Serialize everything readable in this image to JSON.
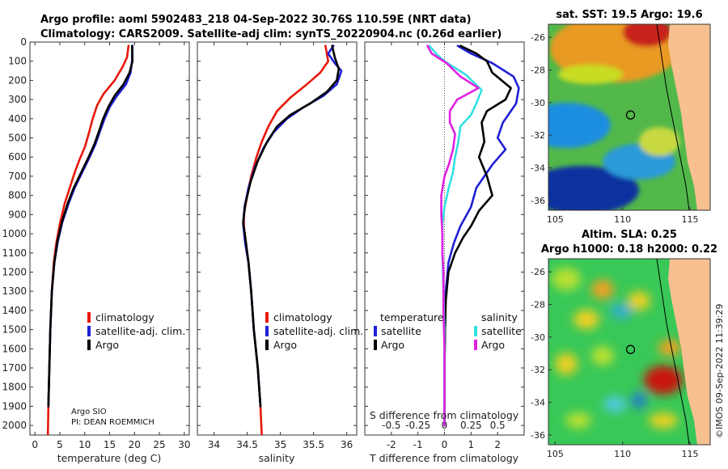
{
  "title_line1": "Argo profile: aoml 5902483_218 04-Sep-2022 30.76S 110.59E (NRT data)",
  "title_line2": "Climatology: CARS2009. Satellite-adj clim: synTS_20220904.nc (0.26d earlier)",
  "credit": "©IMOS 09-Sep-2022 11:39:29",
  "pi_line1": "Argo SIO",
  "pi_line2": "PI: DEAN ROEMMICH",
  "colors": {
    "climatology": "#e8180c",
    "satellite": "#1f1fd6",
    "argo": "#000000",
    "sat_salinity": "#33e0e0",
    "argo_salinity": "#e020e0"
  },
  "chart_data": [
    {
      "type": "line",
      "id": "temperature",
      "xlabel": "temperature (deg C)",
      "ylabel": "",
      "xlim": [
        -1,
        31
      ],
      "ylim": [
        2050,
        0
      ],
      "xticks": [
        0,
        5,
        10,
        15,
        20,
        25,
        30
      ],
      "yticks": [
        0,
        100,
        200,
        300,
        400,
        500,
        600,
        700,
        800,
        900,
        1000,
        1100,
        1200,
        1300,
        1400,
        1500,
        1600,
        1700,
        1800,
        1900,
        2000
      ],
      "legend": [
        "climatology",
        "satellite-adj. clim.",
        "Argo"
      ],
      "series": [
        {
          "name": "climatology",
          "color": "#e8180c",
          "points": [
            [
              18.8,
              20
            ],
            [
              18.5,
              80
            ],
            [
              17.6,
              130
            ],
            [
              16.0,
              200
            ],
            [
              13.8,
              270
            ],
            [
              12.5,
              330
            ],
            [
              11.6,
              400
            ],
            [
              10.8,
              480
            ],
            [
              10.0,
              550
            ],
            [
              9.0,
              610
            ],
            [
              8.0,
              680
            ],
            [
              7.0,
              760
            ],
            [
              6.0,
              840
            ],
            [
              5.0,
              950
            ],
            [
              4.3,
              1050
            ],
            [
              3.8,
              1150
            ],
            [
              3.4,
              1300
            ],
            [
              3.1,
              1500
            ],
            [
              2.9,
              1700
            ],
            [
              2.7,
              1900
            ],
            [
              2.6,
              2050
            ]
          ]
        },
        {
          "name": "satellite-adj. clim.",
          "color": "#1f1fd6",
          "points": [
            [
              19.6,
              20
            ],
            [
              19.5,
              100
            ],
            [
              19.2,
              160
            ],
            [
              18.3,
              220
            ],
            [
              16.5,
              280
            ],
            [
              15.0,
              340
            ],
            [
              14.0,
              400
            ],
            [
              13.0,
              470
            ],
            [
              12.2,
              530
            ],
            [
              11.0,
              600
            ],
            [
              9.5,
              680
            ],
            [
              8.0,
              760
            ],
            [
              6.8,
              840
            ],
            [
              5.5,
              940
            ],
            [
              4.6,
              1040
            ],
            [
              3.9,
              1150
            ],
            [
              3.4,
              1300
            ],
            [
              3.1,
              1500
            ],
            [
              2.9,
              1700
            ],
            [
              2.7,
              1900
            ]
          ]
        },
        {
          "name": "Argo",
          "color": "#000000",
          "points": [
            [
              19.5,
              20
            ],
            [
              19.6,
              100
            ],
            [
              19.0,
              160
            ],
            [
              17.8,
              220
            ],
            [
              16.0,
              280
            ],
            [
              14.7,
              340
            ],
            [
              13.7,
              400
            ],
            [
              12.8,
              470
            ],
            [
              12.0,
              530
            ],
            [
              10.8,
              600
            ],
            [
              9.3,
              680
            ],
            [
              7.8,
              760
            ],
            [
              6.6,
              840
            ],
            [
              5.4,
              940
            ],
            [
              4.5,
              1040
            ],
            [
              3.9,
              1150
            ],
            [
              3.4,
              1300
            ],
            [
              3.1,
              1500
            ],
            [
              2.9,
              1700
            ],
            [
              2.7,
              1900
            ]
          ]
        }
      ]
    },
    {
      "type": "line",
      "id": "salinity",
      "xlabel": "salinity",
      "xlim": [
        33.75,
        36.15
      ],
      "ylim": [
        2050,
        0
      ],
      "xticks": [
        34,
        34.5,
        35,
        35.5,
        36
      ],
      "legend": [
        "climatology",
        "satellite-adj. clim.",
        "Argo"
      ],
      "series": [
        {
          "name": "climatology",
          "color": "#e8180c",
          "points": [
            [
              35.68,
              20
            ],
            [
              35.72,
              100
            ],
            [
              35.6,
              160
            ],
            [
              35.4,
              220
            ],
            [
              35.15,
              290
            ],
            [
              34.95,
              360
            ],
            [
              34.82,
              440
            ],
            [
              34.72,
              520
            ],
            [
              34.64,
              600
            ],
            [
              34.56,
              700
            ],
            [
              34.5,
              800
            ],
            [
              34.45,
              900
            ],
            [
              34.45,
              960
            ],
            [
              34.48,
              1050
            ],
            [
              34.52,
              1150
            ],
            [
              34.56,
              1300
            ],
            [
              34.6,
              1500
            ],
            [
              34.66,
              1700
            ],
            [
              34.7,
              1900
            ],
            [
              34.72,
              2050
            ]
          ]
        },
        {
          "name": "satellite-adj. clim.",
          "color": "#1f1fd6",
          "points": [
            [
              35.8,
              20
            ],
            [
              35.72,
              60
            ],
            [
              35.82,
              110
            ],
            [
              35.92,
              150
            ],
            [
              35.85,
              220
            ],
            [
              35.65,
              280
            ],
            [
              35.35,
              340
            ],
            [
              35.1,
              400
            ],
            [
              34.9,
              470
            ],
            [
              34.75,
              550
            ],
            [
              34.62,
              650
            ],
            [
              34.52,
              760
            ],
            [
              34.46,
              860
            ],
            [
              34.44,
              950
            ],
            [
              34.47,
              1050
            ],
            [
              34.52,
              1150
            ],
            [
              34.56,
              1300
            ],
            [
              34.6,
              1500
            ],
            [
              34.66,
              1700
            ],
            [
              34.7,
              1900
            ]
          ]
        },
        {
          "name": "Argo",
          "color": "#000000",
          "points": [
            [
              35.78,
              20
            ],
            [
              35.82,
              80
            ],
            [
              35.88,
              140
            ],
            [
              35.85,
              200
            ],
            [
              35.7,
              260
            ],
            [
              35.45,
              320
            ],
            [
              35.15,
              380
            ],
            [
              34.95,
              440
            ],
            [
              34.8,
              520
            ],
            [
              34.66,
              620
            ],
            [
              34.55,
              730
            ],
            [
              34.47,
              850
            ],
            [
              34.44,
              940
            ],
            [
              34.48,
              1040
            ],
            [
              34.52,
              1150
            ],
            [
              34.56,
              1300
            ],
            [
              34.6,
              1500
            ],
            [
              34.66,
              1700
            ],
            [
              34.7,
              1900
            ]
          ]
        }
      ]
    },
    {
      "type": "line",
      "id": "difference",
      "xlabel": "T difference from climatology",
      "top_axis_label": "S difference from climatology",
      "xlim": [
        -3.0,
        3.0
      ],
      "ylim": [
        2050,
        0
      ],
      "xticks": [
        -2,
        -1,
        0,
        1,
        2
      ],
      "xtick_labels": [
        "-2",
        "-1",
        "0",
        "1",
        "2"
      ],
      "sticks": [
        -0.5,
        -0.25,
        0,
        0.25,
        0.5
      ],
      "stick_labels": [
        "-0.5",
        "-0.25",
        "0",
        "0.25",
        "0.5"
      ],
      "stick_scale": 4,
      "legend_titles": [
        "temperature",
        "salinity"
      ],
      "legend_t": [
        "satellite",
        "Argo"
      ],
      "legend_s": [
        "satellite",
        "Argo"
      ],
      "series": [
        {
          "name": "T satellite",
          "color": "#1f1fd6",
          "points": [
            [
              0.5,
              20
            ],
            [
              1.0,
              60
            ],
            [
              1.8,
              110
            ],
            [
              2.6,
              180
            ],
            [
              2.8,
              240
            ],
            [
              2.7,
              320
            ],
            [
              2.2,
              420
            ],
            [
              2.0,
              500
            ],
            [
              2.3,
              560
            ],
            [
              1.8,
              640
            ],
            [
              1.2,
              760
            ],
            [
              1.0,
              860
            ],
            [
              0.6,
              960
            ],
            [
              0.35,
              1050
            ],
            [
              0.15,
              1150
            ],
            [
              0.05,
              1300
            ],
            [
              0.02,
              1500
            ],
            [
              0.0,
              1700
            ],
            [
              0.0,
              1900
            ],
            [
              0.0,
              2000
            ]
          ]
        },
        {
          "name": "T Argo",
          "color": "#000000",
          "points": [
            [
              0.6,
              20
            ],
            [
              1.2,
              60
            ],
            [
              1.6,
              100
            ],
            [
              1.8,
              160
            ],
            [
              2.5,
              240
            ],
            [
              2.3,
              300
            ],
            [
              1.6,
              360
            ],
            [
              1.4,
              420
            ],
            [
              1.5,
              520
            ],
            [
              1.3,
              600
            ],
            [
              1.6,
              700
            ],
            [
              1.8,
              800
            ],
            [
              1.3,
              880
            ],
            [
              1.0,
              960
            ],
            [
              0.7,
              1020
            ],
            [
              0.4,
              1100
            ],
            [
              0.15,
              1200
            ],
            [
              0.05,
              1350
            ],
            [
              0.02,
              1500
            ],
            [
              0.0,
              1700
            ],
            [
              0.0,
              1900
            ],
            [
              0.0,
              2000
            ]
          ]
        },
        {
          "name": "S satellite",
          "color": "#33e0e0",
          "points": [
            [
              -0.14,
              20
            ],
            [
              -0.08,
              60
            ],
            [
              0.0,
              100
            ],
            [
              0.2,
              170
            ],
            [
              0.35,
              250
            ],
            [
              0.3,
              320
            ],
            [
              0.25,
              380
            ],
            [
              0.15,
              440
            ],
            [
              0.13,
              520
            ],
            [
              0.1,
              600
            ],
            [
              0.08,
              680
            ],
            [
              0.04,
              760
            ],
            [
              0.0,
              860
            ],
            [
              -0.02,
              950
            ],
            [
              -0.02,
              1100
            ],
            [
              -0.01,
              1300
            ],
            [
              0.0,
              1500
            ],
            [
              0.0,
              1700
            ],
            [
              0.0,
              1900
            ],
            [
              0.0,
              2000
            ]
          ]
        },
        {
          "name": "S Argo",
          "color": "#e020e0",
          "points": [
            [
              -0.16,
              20
            ],
            [
              -0.12,
              60
            ],
            [
              0.02,
              110
            ],
            [
              0.15,
              180
            ],
            [
              0.32,
              240
            ],
            [
              0.12,
              300
            ],
            [
              0.05,
              360
            ],
            [
              0.05,
              420
            ],
            [
              0.1,
              480
            ],
            [
              0.08,
              560
            ],
            [
              0.04,
              640
            ],
            [
              0.0,
              700
            ],
            [
              -0.03,
              800
            ],
            [
              -0.03,
              900
            ],
            [
              -0.02,
              1000
            ],
            [
              -0.02,
              1100
            ],
            [
              -0.01,
              1200
            ],
            [
              -0.01,
              1400
            ],
            [
              0.0,
              1600
            ],
            [
              0.0,
              1800
            ],
            [
              0.0,
              2000
            ]
          ]
        }
      ]
    },
    {
      "type": "heatmap",
      "id": "sst_map",
      "title": "sat. SST: 19.5 Argo: 19.6",
      "xlim": [
        104.5,
        116.5
      ],
      "ylim": [
        -36.6,
        -25.2
      ],
      "xticks": [
        105,
        110,
        115
      ],
      "yticks": [
        -26,
        -28,
        -30,
        -32,
        -34,
        -36
      ],
      "argo_position": [
        110.59,
        -30.76
      ]
    },
    {
      "type": "heatmap",
      "id": "sla_map",
      "title_line1": "Altim. SLA: 0.25",
      "title_line2": "Argo h1000: 0.18 h2000: 0.22",
      "xlim": [
        104.5,
        116.5
      ],
      "ylim": [
        -36.6,
        -25.2
      ],
      "xticks": [
        105,
        110,
        115
      ],
      "yticks": [
        -26,
        -28,
        -30,
        -32,
        -34,
        -36
      ],
      "argo_position": [
        110.59,
        -30.76
      ]
    }
  ]
}
